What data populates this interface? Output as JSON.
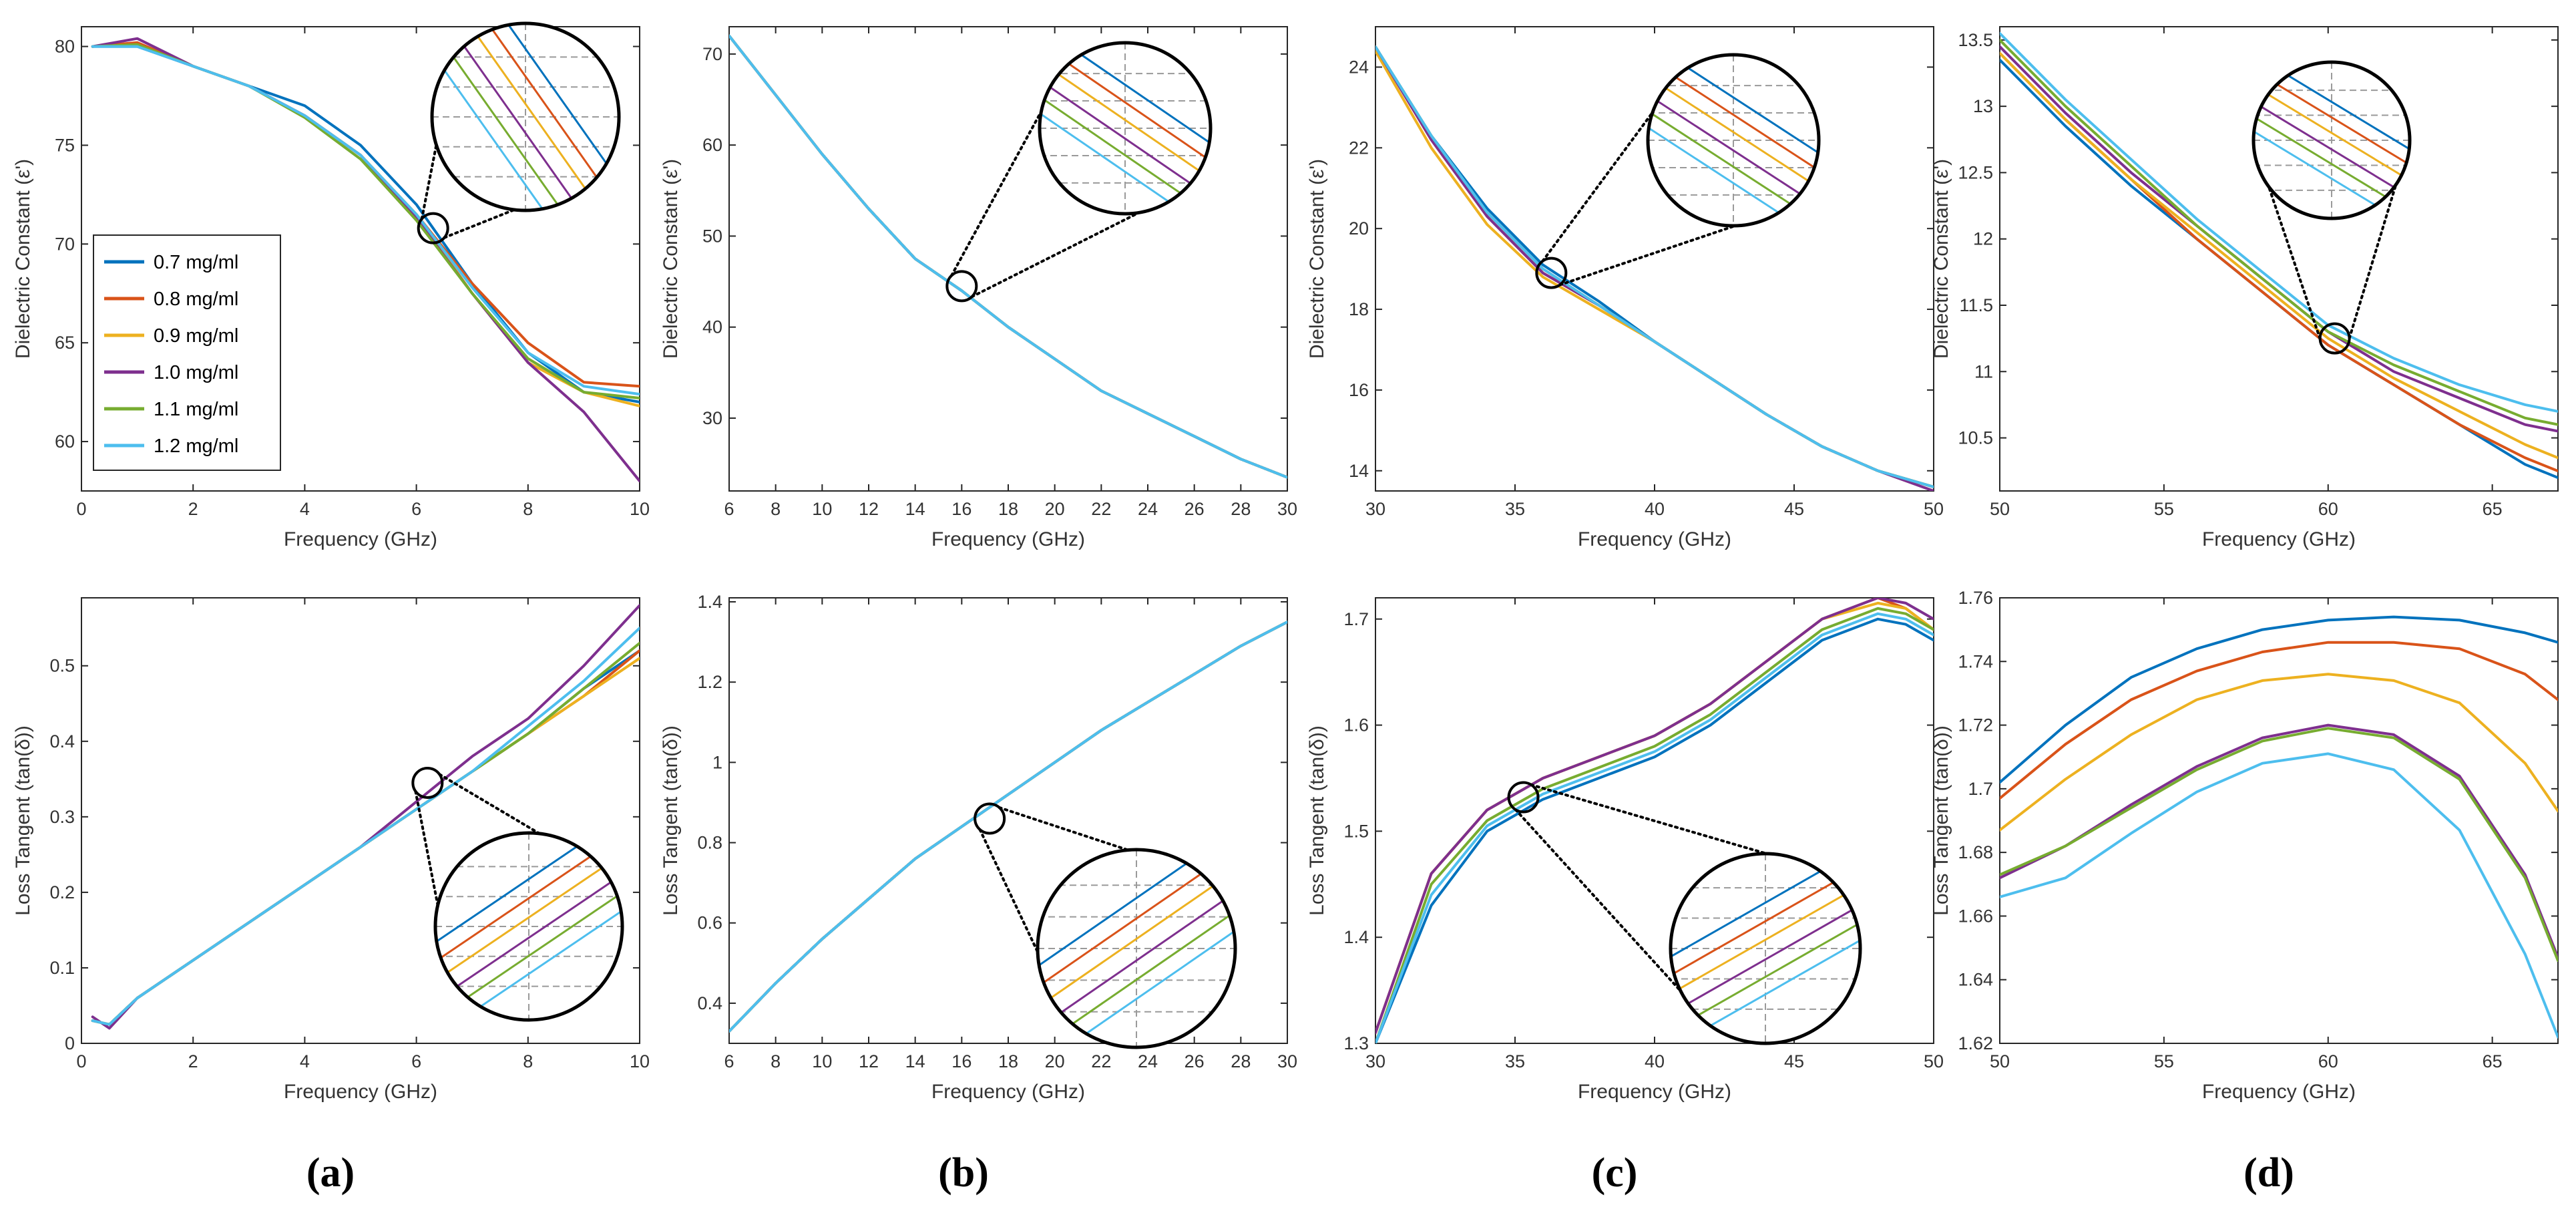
{
  "figure": {
    "panel_labels": [
      "(a)",
      "(b)",
      "(c)",
      "(d)"
    ],
    "series_colors": [
      "#0072BD",
      "#D95319",
      "#EDB120",
      "#7E2F8E",
      "#77AC30",
      "#4DBEEE"
    ]
  },
  "legend": {
    "entries": [
      "0.7 mg/ml",
      "0.8 mg/ml",
      "0.9 mg/ml",
      "1.0 mg/ml",
      "1.1 mg/ml",
      "1.2 mg/ml"
    ]
  },
  "chart_data": [
    {
      "id": "a_top",
      "type": "line",
      "panel": "(a)",
      "xlabel": "Frequency (GHz)",
      "ylabel": "Dielectric Constant (ε')",
      "xlim": [
        0,
        10
      ],
      "ylim": [
        57.5,
        81
      ],
      "xticks": [
        0,
        2,
        4,
        6,
        8,
        10
      ],
      "yticks": [
        60,
        65,
        70,
        75,
        80
      ],
      "x": [
        0.2,
        1,
        2,
        3,
        4,
        5,
        6,
        7,
        8,
        9,
        10
      ],
      "series": [
        {
          "name": "0.7 mg/ml",
          "values": [
            80,
            80,
            79,
            78,
            77,
            75,
            72,
            68,
            64.5,
            62.5,
            62
          ]
        },
        {
          "name": "0.8 mg/ml",
          "values": [
            80,
            80.2,
            79,
            78,
            76.5,
            74.5,
            71.5,
            68,
            65,
            63,
            62.8
          ]
        },
        {
          "name": "0.9 mg/ml",
          "values": [
            80,
            80.1,
            79,
            78,
            76.5,
            74.5,
            71.5,
            67.5,
            64,
            62.5,
            61.8
          ]
        },
        {
          "name": "1.0 mg/ml",
          "values": [
            80,
            80.4,
            79,
            78,
            76.5,
            74.5,
            71.3,
            67.5,
            64,
            61.5,
            58
          ]
        },
        {
          "name": "1.1 mg/ml",
          "values": [
            80,
            80.1,
            79,
            78,
            76.4,
            74.3,
            71.2,
            67.5,
            64.2,
            62.5,
            62.2
          ]
        },
        {
          "name": "1.2 mg/ml",
          "values": [
            80,
            80,
            79,
            78,
            76.5,
            74.5,
            71.5,
            67.8,
            64.5,
            62.8,
            62.4
          ]
        }
      ],
      "zoom_at": [
        6.3,
        70.8
      ]
    },
    {
      "id": "b_top",
      "type": "line",
      "panel": "(b)",
      "xlabel": "Frequency (GHz)",
      "ylabel": "Dielectric Constant (ε')",
      "xlim": [
        6,
        30
      ],
      "ylim": [
        22,
        73
      ],
      "xticks": [
        6,
        8,
        10,
        12,
        14,
        16,
        18,
        20,
        22,
        24,
        26,
        28,
        30
      ],
      "yticks": [
        30,
        40,
        50,
        60,
        70
      ],
      "x": [
        6,
        8,
        10,
        12,
        14,
        16,
        18,
        20,
        22,
        24,
        26,
        28,
        30
      ],
      "series": [
        {
          "name": "0.7 mg/ml",
          "values": [
            72,
            65.5,
            59,
            53,
            47.5,
            44,
            40,
            36.5,
            33,
            30.5,
            28,
            25.5,
            23.5
          ]
        },
        {
          "name": "0.8 mg/ml",
          "values": [
            72,
            65.5,
            59,
            53,
            47.5,
            44,
            40,
            36.5,
            33,
            30.5,
            28,
            25.5,
            23.5
          ]
        },
        {
          "name": "0.9 mg/ml",
          "values": [
            72,
            65.5,
            59,
            53,
            47.5,
            44,
            40,
            36.5,
            33,
            30.5,
            28,
            25.5,
            23.5
          ]
        },
        {
          "name": "1.0 mg/ml",
          "values": [
            72,
            65.5,
            59,
            53,
            47.5,
            44,
            40,
            36.5,
            33,
            30.5,
            28,
            25.5,
            23.5
          ]
        },
        {
          "name": "1.1 mg/ml",
          "values": [
            72,
            65.5,
            59,
            53,
            47.5,
            44,
            40,
            36.5,
            33,
            30.5,
            28,
            25.5,
            23.5
          ]
        },
        {
          "name": "1.2 mg/ml",
          "values": [
            72,
            65.5,
            59,
            53,
            47.5,
            44,
            40,
            36.5,
            33,
            30.5,
            28,
            25.5,
            23.5
          ]
        }
      ],
      "zoom_at": [
        16,
        44.5
      ]
    },
    {
      "id": "c_top",
      "type": "line",
      "panel": "(c)",
      "xlabel": "Frequency (GHz)",
      "ylabel": "Dielectric Constant (ε')",
      "xlim": [
        30,
        50
      ],
      "ylim": [
        13.5,
        25
      ],
      "xticks": [
        30,
        35,
        40,
        45,
        50
      ],
      "yticks": [
        14,
        16,
        18,
        20,
        22,
        24
      ],
      "x": [
        30,
        32,
        34,
        36,
        38,
        40,
        42,
        44,
        46,
        48,
        50
      ],
      "series": [
        {
          "name": "0.7 mg/ml",
          "values": [
            24.5,
            22.3,
            20.5,
            19.1,
            18.2,
            17.2,
            16.3,
            15.4,
            14.6,
            14,
            13.6
          ]
        },
        {
          "name": "0.8 mg/ml",
          "values": [
            24.5,
            22.2,
            20.3,
            18.9,
            18.1,
            17.2,
            16.3,
            15.4,
            14.6,
            14,
            13.6
          ]
        },
        {
          "name": "0.9 mg/ml",
          "values": [
            24.4,
            22,
            20.1,
            18.8,
            18,
            17.2,
            16.3,
            15.4,
            14.6,
            14,
            13.6
          ]
        },
        {
          "name": "1.0 mg/ml",
          "values": [
            24.5,
            22.2,
            20.3,
            18.9,
            18.1,
            17.2,
            16.3,
            15.4,
            14.6,
            14,
            13.5
          ]
        },
        {
          "name": "1.1 mg/ml",
          "values": [
            24.5,
            22.3,
            20.4,
            19,
            18.1,
            17.2,
            16.3,
            15.4,
            14.6,
            14,
            13.6
          ]
        },
        {
          "name": "1.2 mg/ml",
          "values": [
            24.5,
            22.3,
            20.4,
            19,
            18.1,
            17.2,
            16.3,
            15.4,
            14.6,
            14,
            13.6
          ]
        }
      ],
      "zoom_at": [
        36.3,
        18.9
      ]
    },
    {
      "id": "d_top",
      "type": "line",
      "panel": "(d)",
      "xlabel": "Frequency (GHz)",
      "ylabel": "Dielectric Constant (ε')",
      "xlim": [
        50,
        67
      ],
      "ylim": [
        10.1,
        13.6
      ],
      "xticks": [
        50,
        55,
        60,
        65
      ],
      "yticks": [
        10.5,
        11,
        11.5,
        12,
        12.5,
        13,
        13.5
      ],
      "x": [
        50,
        52,
        54,
        56,
        58,
        60,
        62,
        64,
        66,
        67
      ],
      "series": [
        {
          "name": "0.7 mg/ml",
          "values": [
            13.35,
            12.85,
            12.4,
            12,
            11.6,
            11.2,
            10.9,
            10.6,
            10.3,
            10.2
          ]
        },
        {
          "name": "0.8 mg/ml",
          "values": [
            13.4,
            12.9,
            12.45,
            12,
            11.6,
            11.2,
            10.9,
            10.6,
            10.35,
            10.25
          ]
        },
        {
          "name": "0.9 mg/ml",
          "values": [
            13.4,
            12.9,
            12.45,
            12.05,
            11.65,
            11.25,
            10.95,
            10.7,
            10.45,
            10.35
          ]
        },
        {
          "name": "1.0 mg/ml",
          "values": [
            13.45,
            12.95,
            12.5,
            12.1,
            11.7,
            11.3,
            11,
            10.8,
            10.6,
            10.55
          ]
        },
        {
          "name": "1.1 mg/ml",
          "values": [
            13.5,
            13,
            12.55,
            12.1,
            11.7,
            11.3,
            11.05,
            10.85,
            10.65,
            10.6
          ]
        },
        {
          "name": "1.2 mg/ml",
          "values": [
            13.55,
            13.05,
            12.6,
            12.15,
            11.75,
            11.35,
            11.1,
            10.9,
            10.75,
            10.7
          ]
        }
      ],
      "zoom_at": [
        60.2,
        11.25
      ]
    },
    {
      "id": "a_bot",
      "type": "line",
      "panel": "(a)",
      "xlabel": "Frequency (GHz)",
      "ylabel": "Loss Tangent (tan(δ))",
      "xlim": [
        0,
        10
      ],
      "ylim": [
        0,
        0.59
      ],
      "xticks": [
        0,
        2,
        4,
        6,
        8,
        10
      ],
      "yticks": [
        0,
        0.1,
        0.2,
        0.3,
        0.4,
        0.5
      ],
      "x": [
        0.2,
        0.5,
        1,
        2,
        3,
        4,
        5,
        6,
        7,
        8,
        9,
        10
      ],
      "series": [
        {
          "name": "0.7 mg/ml",
          "values": [
            0.03,
            0.025,
            0.06,
            0.11,
            0.16,
            0.21,
            0.26,
            0.31,
            0.36,
            0.41,
            0.47,
            0.52
          ]
        },
        {
          "name": "0.8 mg/ml",
          "values": [
            0.03,
            0.025,
            0.06,
            0.11,
            0.16,
            0.21,
            0.26,
            0.31,
            0.36,
            0.41,
            0.46,
            0.52
          ]
        },
        {
          "name": "0.9 mg/ml",
          "values": [
            0.03,
            0.025,
            0.06,
            0.11,
            0.16,
            0.21,
            0.26,
            0.31,
            0.36,
            0.41,
            0.46,
            0.51
          ]
        },
        {
          "name": "1.0 mg/ml",
          "values": [
            0.035,
            0.02,
            0.06,
            0.11,
            0.16,
            0.21,
            0.26,
            0.32,
            0.38,
            0.43,
            0.5,
            0.58
          ]
        },
        {
          "name": "1.1 mg/ml",
          "values": [
            0.03,
            0.025,
            0.06,
            0.11,
            0.16,
            0.21,
            0.26,
            0.31,
            0.36,
            0.41,
            0.47,
            0.53
          ]
        },
        {
          "name": "1.2 mg/ml",
          "values": [
            0.03,
            0.025,
            0.06,
            0.11,
            0.16,
            0.21,
            0.26,
            0.31,
            0.36,
            0.42,
            0.48,
            0.55
          ]
        }
      ],
      "zoom_at": [
        6.2,
        0.345
      ]
    },
    {
      "id": "b_bot",
      "type": "line",
      "panel": "(b)",
      "xlabel": "Frequency (GHz)",
      "ylabel": "Loss Tangent (tan(δ))",
      "xlim": [
        6,
        30
      ],
      "ylim": [
        0.3,
        1.41
      ],
      "xticks": [
        6,
        8,
        10,
        12,
        14,
        16,
        18,
        20,
        22,
        24,
        26,
        28,
        30
      ],
      "yticks": [
        0.4,
        0.6,
        0.8,
        1,
        1.2,
        1.4
      ],
      "x": [
        6,
        8,
        10,
        12,
        14,
        16,
        18,
        20,
        22,
        24,
        26,
        28,
        30
      ],
      "series": [
        {
          "name": "0.7 mg/ml",
          "values": [
            0.33,
            0.45,
            0.56,
            0.66,
            0.76,
            0.84,
            0.92,
            1.0,
            1.08,
            1.15,
            1.22,
            1.29,
            1.35
          ]
        },
        {
          "name": "0.8 mg/ml",
          "values": [
            0.33,
            0.45,
            0.56,
            0.66,
            0.76,
            0.84,
            0.92,
            1.0,
            1.08,
            1.15,
            1.22,
            1.29,
            1.35
          ]
        },
        {
          "name": "0.9 mg/ml",
          "values": [
            0.33,
            0.45,
            0.56,
            0.66,
            0.76,
            0.84,
            0.92,
            1.0,
            1.08,
            1.15,
            1.22,
            1.29,
            1.35
          ]
        },
        {
          "name": "1.0 mg/ml",
          "values": [
            0.33,
            0.45,
            0.56,
            0.66,
            0.76,
            0.84,
            0.92,
            1.0,
            1.08,
            1.15,
            1.22,
            1.29,
            1.35
          ]
        },
        {
          "name": "1.1 mg/ml",
          "values": [
            0.33,
            0.45,
            0.56,
            0.66,
            0.76,
            0.84,
            0.92,
            1.0,
            1.08,
            1.15,
            1.22,
            1.29,
            1.35
          ]
        },
        {
          "name": "1.2 mg/ml",
          "values": [
            0.33,
            0.45,
            0.56,
            0.66,
            0.76,
            0.84,
            0.92,
            1.0,
            1.08,
            1.15,
            1.22,
            1.29,
            1.35
          ]
        }
      ],
      "zoom_at": [
        17.2,
        0.86
      ]
    },
    {
      "id": "c_bot",
      "type": "line",
      "panel": "(c)",
      "xlabel": "Frequency (GHz)",
      "ylabel": "Loss Tangent (tan(δ))",
      "xlim": [
        30,
        50
      ],
      "ylim": [
        1.3,
        1.72
      ],
      "xticks": [
        30,
        35,
        40,
        45,
        50
      ],
      "yticks": [
        1.3,
        1.4,
        1.5,
        1.6,
        1.7
      ],
      "x": [
        30,
        32,
        34,
        36,
        38,
        40,
        42,
        44,
        46,
        48,
        49,
        50
      ],
      "series": [
        {
          "name": "0.7 mg/ml",
          "values": [
            1.3,
            1.43,
            1.5,
            1.53,
            1.55,
            1.57,
            1.6,
            1.64,
            1.68,
            1.7,
            1.695,
            1.68
          ]
        },
        {
          "name": "0.8 mg/ml",
          "values": [
            1.31,
            1.46,
            1.52,
            1.55,
            1.57,
            1.59,
            1.62,
            1.66,
            1.7,
            1.72,
            1.71,
            1.69
          ]
        },
        {
          "name": "0.9 mg/ml",
          "values": [
            1.31,
            1.46,
            1.52,
            1.55,
            1.57,
            1.59,
            1.62,
            1.66,
            1.7,
            1.715,
            1.71,
            1.69
          ]
        },
        {
          "name": "1.0 mg/ml",
          "values": [
            1.31,
            1.46,
            1.52,
            1.55,
            1.57,
            1.59,
            1.62,
            1.66,
            1.7,
            1.72,
            1.715,
            1.7
          ]
        },
        {
          "name": "1.1 mg/ml",
          "values": [
            1.3,
            1.45,
            1.51,
            1.54,
            1.56,
            1.58,
            1.61,
            1.65,
            1.69,
            1.71,
            1.705,
            1.69
          ]
        },
        {
          "name": "1.2 mg/ml",
          "values": [
            1.3,
            1.44,
            1.505,
            1.535,
            1.555,
            1.575,
            1.605,
            1.645,
            1.685,
            1.705,
            1.7,
            1.685
          ]
        }
      ],
      "zoom_at": [
        35.3,
        1.532
      ]
    },
    {
      "id": "d_bot",
      "type": "line",
      "panel": "(d)",
      "xlabel": "Frequency (GHz)",
      "ylabel": "Loss Tangent (tan(δ))",
      "xlim": [
        50,
        67
      ],
      "ylim": [
        1.62,
        1.76
      ],
      "xticks": [
        50,
        55,
        60,
        65
      ],
      "yticks": [
        1.62,
        1.64,
        1.66,
        1.68,
        1.7,
        1.72,
        1.74,
        1.76
      ],
      "x": [
        50,
        52,
        54,
        56,
        58,
        60,
        62,
        64,
        66,
        67
      ],
      "series": [
        {
          "name": "0.7 mg/ml",
          "values": [
            1.702,
            1.72,
            1.735,
            1.744,
            1.75,
            1.753,
            1.754,
            1.753,
            1.749,
            1.746
          ]
        },
        {
          "name": "0.8 mg/ml",
          "values": [
            1.697,
            1.714,
            1.728,
            1.737,
            1.743,
            1.746,
            1.746,
            1.744,
            1.736,
            1.728
          ]
        },
        {
          "name": "0.9 mg/ml",
          "values": [
            1.687,
            1.703,
            1.717,
            1.728,
            1.734,
            1.736,
            1.734,
            1.727,
            1.708,
            1.693
          ]
        },
        {
          "name": "1.0 mg/ml",
          "values": [
            1.672,
            1.682,
            1.695,
            1.707,
            1.716,
            1.72,
            1.717,
            1.704,
            1.673,
            1.647
          ]
        },
        {
          "name": "1.1 mg/ml",
          "values": [
            1.673,
            1.682,
            1.694,
            1.706,
            1.715,
            1.719,
            1.716,
            1.703,
            1.672,
            1.646
          ]
        },
        {
          "name": "1.2 mg/ml",
          "values": [
            1.666,
            1.672,
            1.686,
            1.699,
            1.708,
            1.711,
            1.706,
            1.687,
            1.648,
            1.622
          ]
        }
      ]
    }
  ]
}
